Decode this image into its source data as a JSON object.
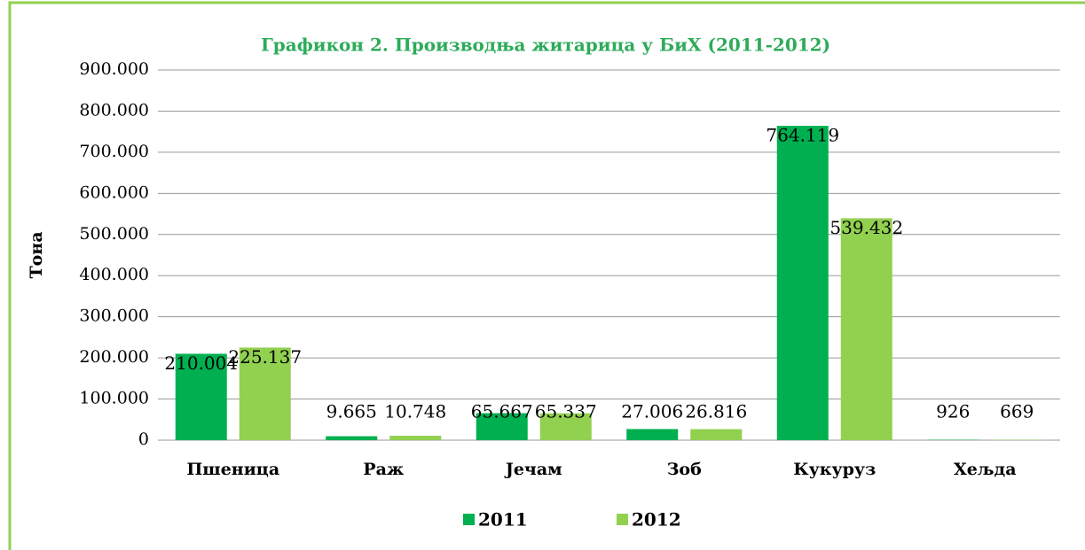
{
  "chart_data": {
    "type": "bar",
    "title": "Графикон 2. Производња житарица у БиХ (2011-2012)",
    "y_label": "Тона",
    "categories": [
      "Пшеница",
      "Раж",
      "Јечам",
      "Зоб",
      "Кукуруз",
      "Хељда"
    ],
    "series": [
      {
        "name": "2011",
        "color": "#00b050",
        "values": [
          210004,
          9665,
          65667,
          27006,
          764119,
          926
        ],
        "value_labels": [
          "210.004",
          "9.665",
          "65.667",
          "27.006",
          "764.119",
          "926"
        ]
      },
      {
        "name": "2012",
        "color": "#92d050",
        "values": [
          225137,
          10748,
          65337,
          26816,
          539432,
          669
        ],
        "value_labels": [
          "225.137",
          "10.748",
          "65.337",
          "26.816",
          "539.432",
          "669"
        ]
      }
    ],
    "ylim": [
      0,
      900000
    ],
    "yticks": [
      0,
      {
        "value": 100000,
        "label": "100.000"
      },
      {
        "value": 200000,
        "label": "200.000"
      },
      {
        "value": 300000,
        "label": "300.000"
      },
      {
        "value": 400000,
        "label": "400.000"
      },
      {
        "value": 500000,
        "label": "500.000"
      },
      {
        "value": 600000,
        "label": "600.000"
      },
      {
        "value": 700000,
        "label": "700.000"
      },
      {
        "value": 800000,
        "label": "800.000"
      },
      {
        "value": 900000,
        "label": "900.000"
      }
    ],
    "grid": true,
    "legend": "bottom"
  }
}
